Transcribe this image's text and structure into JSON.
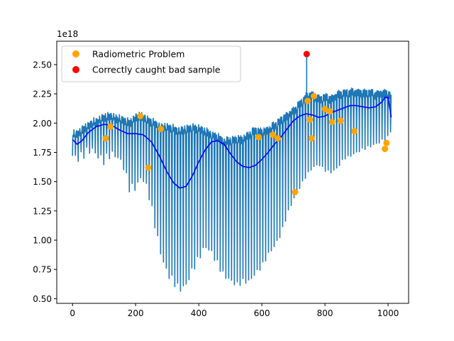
{
  "chart_data": {
    "type": "line",
    "title": "",
    "xlabel": "",
    "ylabel": "",
    "y_offset_label": "1e18",
    "xlim": [
      -50,
      1065
    ],
    "ylim": [
      0.46,
      2.7
    ],
    "x_ticks": [
      0,
      200,
      400,
      600,
      800,
      1000
    ],
    "x_tick_labels": [
      "0",
      "200",
      "400",
      "600",
      "800",
      "1000"
    ],
    "y_ticks": [
      0.5,
      0.75,
      1.0,
      1.25,
      1.5,
      1.75,
      2.0,
      2.25,
      2.5
    ],
    "y_tick_labels": [
      "0.50",
      "0.75",
      "1.00",
      "1.25",
      "1.50",
      "1.75",
      "2.00",
      "2.25",
      "2.50"
    ],
    "grid": false,
    "legend_position": "upper-left",
    "colors": {
      "raw_signal": "#1f77b4",
      "smooth_fit": "#0000ff",
      "radiometric": "#ffa500",
      "bad_sample": "#ff0000"
    },
    "series": [
      {
        "name": "Radiometric Problem",
        "kind": "scatter",
        "color": "#ffa500",
        "x": [
          105,
          120,
          215,
          240,
          280,
          590,
          635,
          650,
          705,
          745,
          752,
          758,
          765,
          800,
          815,
          822,
          850,
          893,
          990,
          995
        ],
        "y": [
          1.87,
          1.97,
          2.06,
          1.62,
          1.95,
          1.88,
          1.9,
          1.87,
          1.41,
          2.19,
          2.03,
          1.87,
          2.23,
          2.12,
          2.1,
          2.01,
          2.02,
          1.93,
          1.78,
          1.83
        ]
      },
      {
        "name": "Correctly caught bad sample",
        "kind": "scatter",
        "color": "#ff0000",
        "x": [
          742
        ],
        "y": [
          2.59
        ]
      }
    ],
    "line_series": [
      {
        "kind": "raw",
        "color": "#1f77b4",
        "x": [
          0,
          20,
          40,
          60,
          80,
          100,
          120,
          140,
          160,
          180,
          200,
          220,
          240,
          260,
          280,
          300,
          320,
          340,
          360,
          380,
          400,
          420,
          440,
          460,
          480,
          500,
          520,
          540,
          560,
          580,
          600,
          620,
          640,
          660,
          680,
          700,
          720,
          740,
          760,
          780,
          800,
          820,
          840,
          860,
          880,
          900,
          920,
          940,
          960,
          980,
          1000,
          1010
        ],
        "upper": [
          1.9,
          1.92,
          1.96,
          2.0,
          2.02,
          2.05,
          2.06,
          2.04,
          2.03,
          2.0,
          2.05,
          2.06,
          2.02,
          2.0,
          1.96,
          1.97,
          1.95,
          1.93,
          1.95,
          1.96,
          1.95,
          1.93,
          1.9,
          1.88,
          1.84,
          1.85,
          1.86,
          1.86,
          1.9,
          1.94,
          1.92,
          1.94,
          1.98,
          2.02,
          2.06,
          2.1,
          2.16,
          2.22,
          2.24,
          2.2,
          2.22,
          2.2,
          2.24,
          2.25,
          2.26,
          2.26,
          2.25,
          2.26,
          2.24,
          2.25,
          2.25,
          2.22
        ],
        "lower": [
          1.72,
          1.7,
          1.75,
          1.78,
          1.72,
          1.68,
          1.74,
          1.72,
          1.65,
          1.45,
          1.45,
          1.55,
          1.42,
          1.15,
          0.88,
          0.72,
          0.65,
          0.58,
          0.62,
          0.75,
          0.85,
          0.95,
          0.9,
          0.8,
          0.7,
          0.66,
          0.62,
          0.65,
          0.65,
          0.72,
          0.78,
          0.88,
          0.95,
          1.05,
          1.22,
          1.35,
          1.45,
          1.55,
          1.62,
          1.65,
          1.6,
          1.58,
          1.62,
          1.7,
          1.72,
          1.75,
          1.78,
          1.8,
          1.82,
          1.85,
          1.88,
          1.95
        ]
      },
      {
        "kind": "smooth",
        "color": "#0000ff",
        "x": [
          0,
          15,
          30,
          50,
          75,
          100,
          125,
          150,
          175,
          200,
          225,
          250,
          275,
          300,
          320,
          340,
          360,
          380,
          400,
          420,
          440,
          460,
          480,
          500,
          520,
          540,
          560,
          580,
          600,
          620,
          640,
          660,
          680,
          700,
          720,
          740,
          760,
          780,
          800,
          820,
          840,
          860,
          880,
          900,
          920,
          940,
          960,
          980,
          990,
          1000,
          1010
        ],
        "y": [
          1.86,
          1.82,
          1.85,
          1.92,
          1.97,
          1.99,
          1.98,
          1.94,
          1.91,
          1.91,
          1.9,
          1.84,
          1.72,
          1.58,
          1.49,
          1.445,
          1.46,
          1.55,
          1.67,
          1.77,
          1.84,
          1.85,
          1.82,
          1.74,
          1.67,
          1.63,
          1.62,
          1.64,
          1.69,
          1.75,
          1.82,
          1.88,
          1.95,
          2.02,
          2.06,
          2.08,
          2.07,
          2.05,
          2.06,
          2.09,
          2.11,
          2.13,
          2.15,
          2.15,
          2.14,
          2.13,
          2.14,
          2.18,
          2.22,
          2.22,
          2.05
        ]
      }
    ]
  },
  "legend": {
    "items": [
      {
        "label": "Radiometric Problem",
        "color": "#ffa500"
      },
      {
        "label": "Correctly caught bad sample",
        "color": "#ff0000"
      }
    ]
  }
}
